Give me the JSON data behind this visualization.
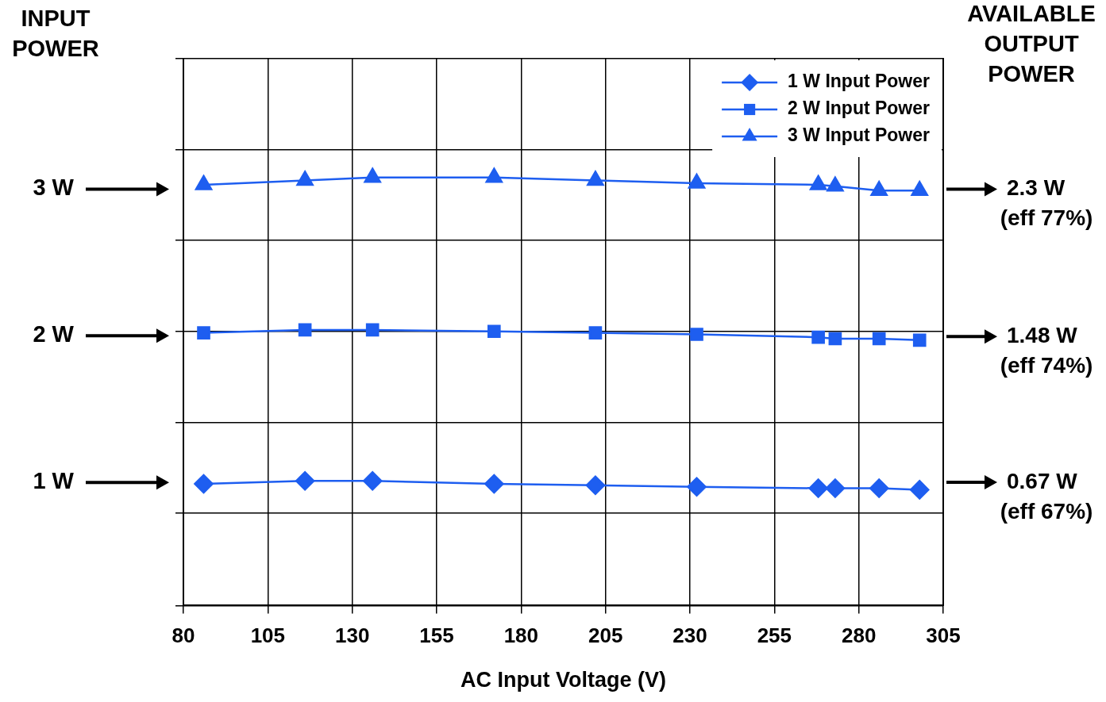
{
  "chart_data": {
    "type": "line",
    "xlabel": "AC Input Voltage (V)",
    "ylabel": "INPUT POWER",
    "y2label": "AVAILABLE OUTPUT POWER",
    "x": [
      86,
      116,
      136,
      172,
      202,
      232,
      268,
      273,
      286,
      298
    ],
    "series": [
      {
        "name": "1 W Input Power",
        "color": "#1e5ef0",
        "marker": "diamond",
        "values": [
          0.99,
          1.01,
          1.01,
          0.99,
          0.98,
          0.97,
          0.96,
          0.96,
          0.96,
          0.95
        ]
      },
      {
        "name": "2 W Input Power",
        "color": "#1e5ef0",
        "marker": "square",
        "values": [
          2.02,
          2.04,
          2.04,
          2.03,
          2.02,
          2.01,
          1.99,
          1.98,
          1.98,
          1.97
        ]
      },
      {
        "name": "3 W Input Power",
        "color": "#1e5ef0",
        "marker": "triangle",
        "values": [
          3.03,
          3.06,
          3.08,
          3.08,
          3.06,
          3.04,
          3.03,
          3.02,
          2.99,
          2.99
        ]
      }
    ],
    "xlim": [
      80,
      305
    ],
    "xticks": [
      80,
      105,
      130,
      155,
      180,
      205,
      230,
      255,
      280,
      305
    ],
    "ylim": [
      0.16,
      3.89
    ],
    "yticks": [
      {
        "value": 0.16,
        "label": null
      },
      {
        "value": 0.79,
        "label": null
      },
      {
        "value": 1,
        "label": "1 W"
      },
      {
        "value": 1.41,
        "label": null
      },
      {
        "value": 2,
        "label": "2 W"
      },
      {
        "value": 2.03,
        "label": null
      },
      {
        "value": 2.65,
        "label": null
      },
      {
        "value": 3,
        "label": "3 W"
      },
      {
        "value": 3.27,
        "label": null
      },
      {
        "value": 3.89,
        "label": null
      }
    ],
    "y2lim": [
      -0.015,
      3.025
    ],
    "y2ticks": [
      {
        "value": 0.67,
        "label": "0.67 W"
      },
      {
        "value": 1.48,
        "label": "1.48 W"
      },
      {
        "value": 2.3,
        "label": "2.3 W"
      }
    ],
    "annotations": [
      "(eff 67%)",
      "(eff 74%)",
      "(eff 77%)"
    ],
    "grid": true,
    "legend": "top right",
    "line_style": "solid"
  }
}
